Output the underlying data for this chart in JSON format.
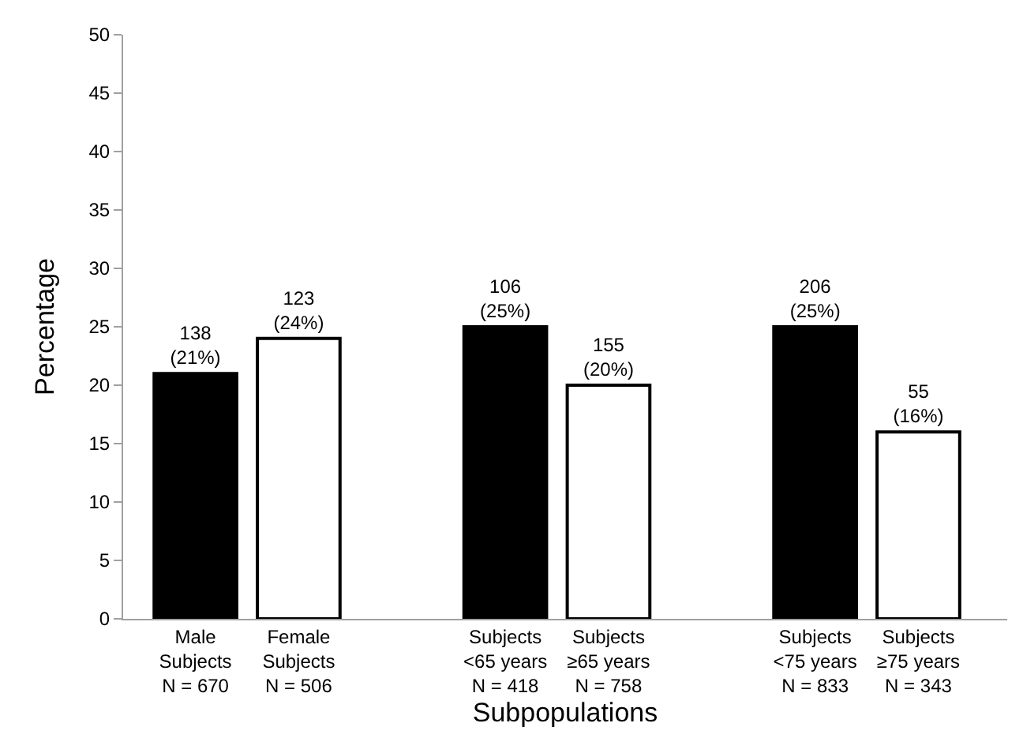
{
  "chart_data": {
    "type": "bar",
    "xlabel": "Subpopulations",
    "ylabel": "Percentage",
    "categories": [
      "Male\nSubjects\nN = 670",
      "Female\nSubjects\nN = 506",
      null,
      "Subjects\n<65 years\nN = 418",
      "Subjects\n≥65 years\nN = 758",
      null,
      "Subjects\n<75 years\nN = 833",
      "Subjects\n≥75 years\nN = 343"
    ],
    "values": [
      21,
      24,
      null,
      25,
      20,
      null,
      25,
      16
    ],
    "colors": [
      "#000000",
      "#ffffff",
      "#ffffff",
      "#000000",
      "#ffffff",
      "#ffffff",
      "#000000",
      "#ffffff"
    ],
    "value_labels": [
      "138\n(21%)",
      "123\n(24%)",
      null,
      "106\n(25%)",
      "155\n(20%)",
      null,
      "206\n(25%)",
      "55\n(16%)"
    ],
    "ylim": [
      0,
      50
    ],
    "yticks": [
      0,
      5,
      10,
      15,
      20,
      25,
      30,
      35,
      40,
      45,
      50
    ],
    "grid": false
  }
}
